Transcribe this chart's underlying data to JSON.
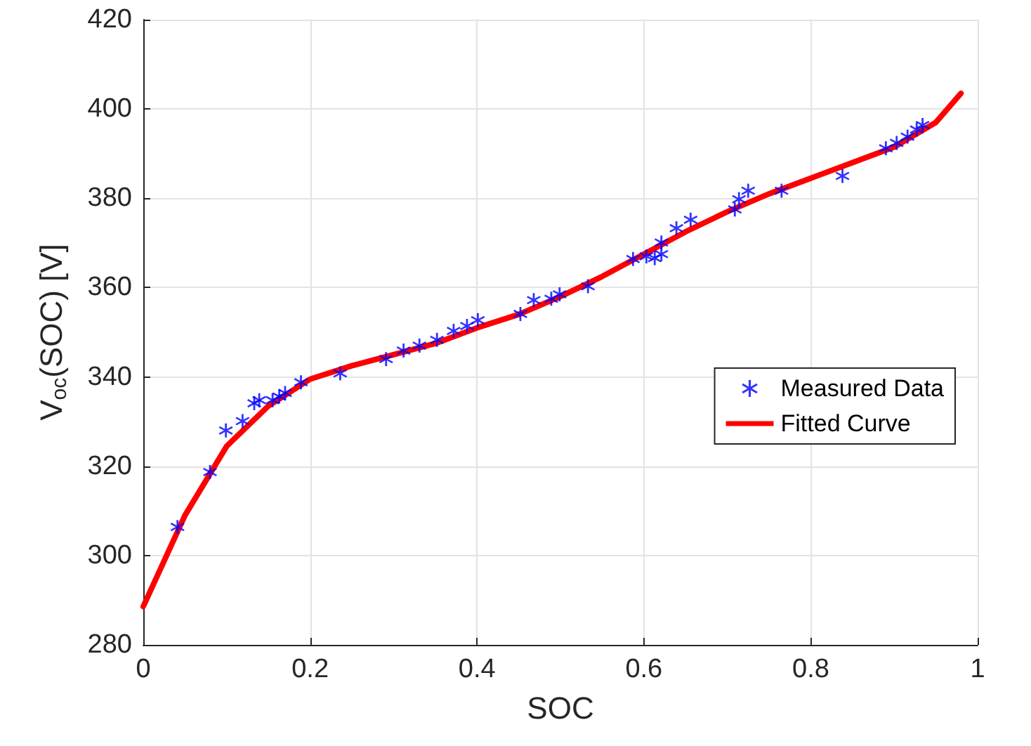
{
  "chart_data": {
    "type": "scatter",
    "xlabel": "SOC",
    "ylabel": "V$_{oc}$(SOC) [V]",
    "xlim": [
      0,
      1
    ],
    "xticks": [
      0,
      0.2,
      0.4,
      0.6,
      0.8,
      1
    ],
    "ylim": [
      280,
      420
    ],
    "yticks": [
      280,
      300,
      320,
      340,
      360,
      380,
      400,
      420
    ],
    "grid": true,
    "legend": "right",
    "series": [
      {
        "name": "Measured Data",
        "marker": "star",
        "color": "#0000ff",
        "x": [
          0.041,
          0.08,
          0.099,
          0.119,
          0.133,
          0.139,
          0.155,
          0.163,
          0.17,
          0.189,
          0.236,
          0.291,
          0.312,
          0.331,
          0.352,
          0.372,
          0.388,
          0.401,
          0.452,
          0.468,
          0.489,
          0.499,
          0.533,
          0.587,
          0.603,
          0.613,
          0.621,
          0.621,
          0.639,
          0.656,
          0.709,
          0.714,
          0.725,
          0.765,
          0.838,
          0.89,
          0.903,
          0.916,
          0.927,
          0.934
        ],
        "values": [
          306.4,
          318.7,
          328,
          330.1,
          334.1,
          334.8,
          334.8,
          335.6,
          336.4,
          338.8,
          340.8,
          344,
          345.9,
          347,
          348.3,
          350.3,
          351.4,
          352.7,
          354.1,
          357.2,
          357.5,
          358.5,
          360.3,
          366.4,
          367,
          366.6,
          367.5,
          370.1,
          373.3,
          375.2,
          377.5,
          379.8,
          381.7,
          381.7,
          385,
          391.2,
          392.4,
          393.8,
          395.4,
          396.4
        ]
      },
      {
        "name": "Fitted Curve",
        "type": "line",
        "marker": "none",
        "line_style": "solid",
        "color": "#ff0000",
        "x": [
          0,
          0.05,
          0.1,
          0.15,
          0.2,
          0.25,
          0.3,
          0.35,
          0.4,
          0.45,
          0.5,
          0.55,
          0.6,
          0.65,
          0.7,
          0.75,
          0.8,
          0.85,
          0.9,
          0.95,
          0.98
        ],
        "values": [
          288.6,
          309,
          324.5,
          333.5,
          339.5,
          342.5,
          345,
          347.5,
          351,
          354,
          358,
          362.5,
          367.5,
          372.5,
          377,
          381,
          384.5,
          388,
          391.5,
          397,
          403.5
        ]
      }
    ]
  }
}
